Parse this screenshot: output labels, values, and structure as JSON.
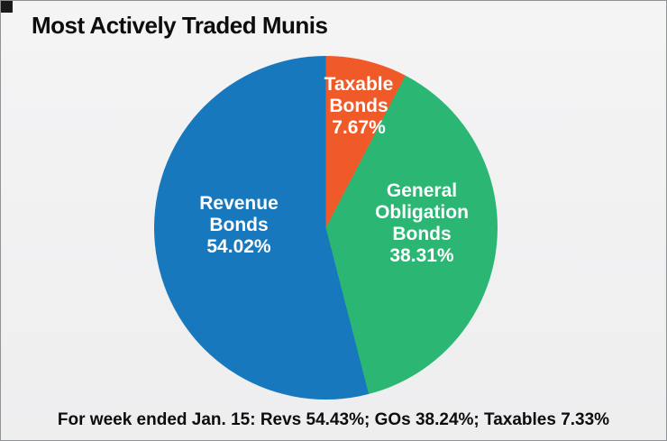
{
  "title": "Most Actively Traded Munis",
  "footer": "For week ended Jan. 15: Revs 54.43%; GOs 38.24%; Taxables 7.33%",
  "colors": {
    "taxable": "#f05a28",
    "general_obligation": "#2bb673",
    "revenue": "#1878be",
    "background": "#f1f1f2",
    "border": "#909296",
    "title_text": "#0d0d0d",
    "label_text": "#ffffff"
  },
  "chart_data": {
    "type": "pie",
    "title": "Most Actively Traded Munis",
    "start_angle_deg": 0,
    "direction": "clockwise",
    "legend_position": "none",
    "slices": [
      {
        "label": "Taxable Bonds",
        "value": 7.67,
        "color": "#f05a28",
        "display": [
          "Taxable",
          "Bonds",
          "7.67%"
        ]
      },
      {
        "label": "General Obligation Bonds",
        "value": 38.31,
        "color": "#2bb673",
        "display": [
          "General",
          "Obligation",
          "Bonds",
          "38.31%"
        ]
      },
      {
        "label": "Revenue Bonds",
        "value": 54.02,
        "color": "#1878be",
        "display": [
          "Revenue",
          "Bonds",
          "54.02%"
        ]
      }
    ],
    "annotation": "For week ended Jan. 15: Revs 54.43%; GOs 38.24%; Taxables 7.33%"
  }
}
